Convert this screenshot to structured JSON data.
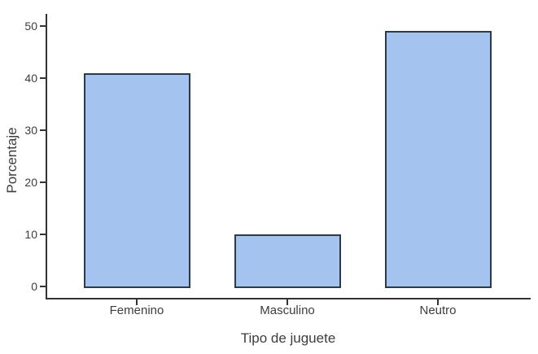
{
  "chart_data": {
    "type": "bar",
    "categories": [
      "Femenino",
      "Masculino",
      "Neutro"
    ],
    "values": [
      41,
      10,
      49
    ],
    "title": "",
    "xlabel": "Tipo de juguete",
    "ylabel": "Porcentaje",
    "ylim": [
      0,
      52
    ],
    "yticks": [
      0,
      10,
      20,
      30,
      40,
      50
    ],
    "grid": false,
    "legend": "none",
    "colors": {
      "bar_fill": "#a4c3ee",
      "bar_border": "#2f3a47",
      "axis": "#333333",
      "text": "#3d3d3d",
      "background": "#ffffff"
    }
  }
}
